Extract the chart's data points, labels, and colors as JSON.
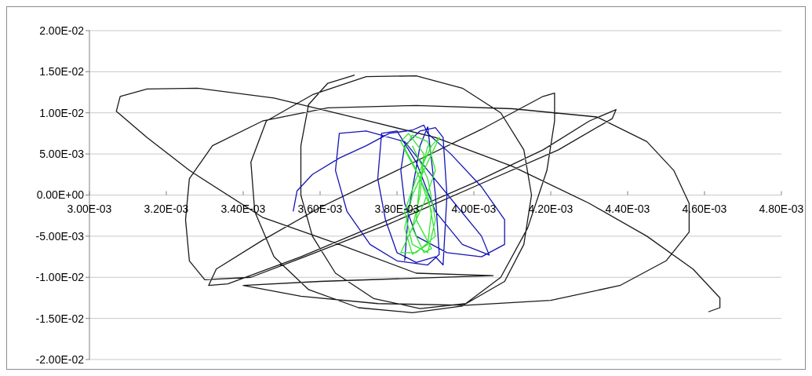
{
  "chart_data": {
    "type": "line",
    "xlim": [
      0.003,
      0.0048
    ],
    "ylim": [
      -0.02,
      0.02
    ],
    "xticks": [
      {
        "value": 0.003,
        "label": "3.00E-03"
      },
      {
        "value": 0.0032,
        "label": "3.20E-03"
      },
      {
        "value": 0.0034,
        "label": "3.40E-03"
      },
      {
        "value": 0.0036,
        "label": "3.60E-03"
      },
      {
        "value": 0.0038,
        "label": "3.80E-03"
      },
      {
        "value": 0.004,
        "label": "4.00E-03"
      },
      {
        "value": 0.0042,
        "label": "4.20E-03"
      },
      {
        "value": 0.0044,
        "label": "4.40E-03"
      },
      {
        "value": 0.0046,
        "label": "4.60E-03"
      },
      {
        "value": 0.0048,
        "label": "4.80E-03"
      }
    ],
    "yticks": [
      {
        "value": 0.02,
        "label": "2.00E-02"
      },
      {
        "value": 0.015,
        "label": "1.50E-02"
      },
      {
        "value": 0.01,
        "label": "1.00E-02"
      },
      {
        "value": 0.005,
        "label": "5.00E-03"
      },
      {
        "value": 0,
        "label": "0.00E+00"
      },
      {
        "value": -0.005,
        "label": "-5.00E-03"
      },
      {
        "value": -0.01,
        "label": "-1.00E-02"
      },
      {
        "value": -0.015,
        "label": "-1.50E-02"
      },
      {
        "value": -0.02,
        "label": "-2.00E-02"
      }
    ],
    "grid": "y",
    "marker": "none",
    "line_style": "solid",
    "series": [
      {
        "color": "#1a1a1a",
        "x": [
          0.00369,
          0.00362,
          0.00357,
          0.00355,
          0.00355,
          0.00358,
          0.00364,
          0.00374,
          0.00386,
          0.00398,
          0.00408,
          0.00413,
          0.00415,
          0.00413,
          0.00407,
          0.00397,
          0.00385,
          0.00372,
          0.00358,
          0.00346,
          0.00342,
          0.00343,
          0.00348,
          0.00357,
          0.0037,
          0.00384,
          0.00397,
          0.00407,
          0.00414,
          0.00419,
          0.00421,
          0.00421,
          0.00418,
          0.00402,
          0.0038,
          0.0036,
          0.00345,
          0.00333,
          0.00331,
          0.00336,
          0.00355,
          0.00378,
          0.004,
          0.00418,
          0.0043,
          0.00437,
          0.00436,
          0.00422,
          0.004,
          0.00378,
          0.00356,
          0.00342,
          0.0033,
          0.00326,
          0.00325,
          0.00326,
          0.00332,
          0.00345,
          0.00362,
          0.00385,
          0.0041,
          0.00432,
          0.00445,
          0.00452,
          0.00456,
          0.00456,
          0.0045,
          0.00438,
          0.0042,
          0.00398,
          0.00375,
          0.00355,
          0.0034,
          0.0036,
          0.00385,
          0.00405,
          0.00385,
          0.00365,
          0.00345,
          0.00326,
          0.00315,
          0.00307,
          0.00308,
          0.00315,
          0.00328,
          0.00348,
          0.00371,
          0.0039,
          0.0041,
          0.0043,
          0.00445,
          0.00457,
          0.00464,
          0.00464,
          0.00461
        ],
        "values": [
          0.0146,
          0.0136,
          0.011,
          0.006,
          0,
          -0.005,
          -0.0095,
          -0.0126,
          -0.0138,
          -0.0132,
          -0.0105,
          -0.006,
          0,
          0.0055,
          0.01,
          0.013,
          0.0145,
          0.0144,
          0.0122,
          0.009,
          0.004,
          -0.002,
          -0.0075,
          -0.0115,
          -0.0137,
          -0.0143,
          -0.0135,
          -0.01,
          -0.004,
          0.003,
          0.009,
          0.0124,
          0.012,
          0.008,
          0.003,
          -0.0015,
          -0.0055,
          -0.009,
          -0.011,
          -0.0108,
          -0.0075,
          -0.003,
          0.0015,
          0.0055,
          0.009,
          0.0104,
          0.0093,
          0.0055,
          0.001,
          -0.0035,
          -0.0075,
          -0.01,
          -0.0103,
          -0.008,
          -0.003,
          0.002,
          0.006,
          0.009,
          0.0106,
          0.0109,
          0.0105,
          0.0095,
          0.0065,
          0.003,
          -0.001,
          -0.0045,
          -0.008,
          -0.011,
          -0.0128,
          -0.0134,
          -0.0132,
          -0.0123,
          -0.011,
          -0.0105,
          -0.0101,
          -0.0098,
          -0.0095,
          -0.006,
          -0.0027,
          0.003,
          0.007,
          0.0102,
          0.012,
          0.0129,
          0.013,
          0.0118,
          0.0092,
          0.007,
          0.0035,
          -0.001,
          -0.005,
          -0.009,
          -0.0125,
          -0.0137,
          -0.0142
        ]
      },
      {
        "color": "#1414b4",
        "x": [
          0.00353,
          0.00354,
          0.00358,
          0.00365,
          0.00372,
          0.00378,
          0.00384,
          0.00387,
          0.00388,
          0.00394,
          0.00402,
          0.00408,
          0.00408,
          0.00402,
          0.00393,
          0.00385,
          0.00382,
          0.00381,
          0.00382,
          0.00386,
          0.0039,
          0.00392,
          0.00393,
          0.00392,
          0.0039,
          0.00385,
          0.0038,
          0.00377,
          0.00375,
          0.00376,
          0.0038,
          0.00385,
          0.0039,
          0.00397,
          0.00404,
          0.00402,
          0.00395,
          0.00388,
          0.00382,
          0.00372,
          0.00365,
          0.00364,
          0.00367,
          0.00373,
          0.0038,
          0.00388,
          0.00391,
          0.0039,
          0.00388,
          0.00386,
          0.00383,
          0.00382
        ],
        "values": [
          -0.002,
          0.0005,
          0.0025,
          0.0045,
          0.006,
          0.0075,
          0.0079,
          0.0085,
          0.0075,
          0.005,
          0.001,
          -0.003,
          -0.006,
          -0.0075,
          -0.007,
          -0.005,
          -0.001,
          0.003,
          0.006,
          0.0078,
          0.0082,
          0.007,
          0,
          -0.0085,
          -0.0075,
          -0.0082,
          -0.007,
          -0.003,
          0.002,
          0.0075,
          0.0078,
          0.004,
          -0.002,
          -0.006,
          -0.0073,
          -0.005,
          -0.001,
          0.003,
          0.0065,
          0.0078,
          0.0075,
          0.003,
          -0.002,
          -0.006,
          -0.008,
          -0.0085,
          -0.0072,
          0,
          0.0083,
          0.006,
          -0.002,
          -0.008
        ]
      },
      {
        "color": "#33e633",
        "x": [
          0.00384,
          0.00388,
          0.0039,
          0.00388,
          0.00384,
          0.00382,
          0.00385,
          0.00389,
          0.00391,
          0.00388,
          0.00384,
          0.00382,
          0.00384,
          0.00388,
          0.00389,
          0.00386,
          0.00382,
          0.00384,
          0.00388,
          0.0039,
          0.00387,
          0.00383,
          0.00381,
          0.00385,
          0.0039,
          0.00388,
          0.00384,
          0.00381,
          0.00383,
          0.00387,
          0.00386,
          0.00384,
          0.00387,
          0.00389,
          0.00385,
          0.00386,
          0.00388
        ],
        "values": [
          0.006,
          0.002,
          -0.003,
          -0.007,
          -0.006,
          -0.002,
          0.002,
          0.006,
          0.007,
          0.004,
          0,
          -0.004,
          -0.0072,
          -0.006,
          -0.002,
          0.002,
          0.0055,
          0.0073,
          0.0065,
          0.003,
          -0.001,
          -0.005,
          -0.007,
          -0.007,
          -0.005,
          0,
          0.004,
          0.0065,
          0.0075,
          0.005,
          0,
          -0.004,
          -0.007,
          -0.0065,
          -0.003,
          0.002,
          0.006
        ]
      }
    ]
  }
}
